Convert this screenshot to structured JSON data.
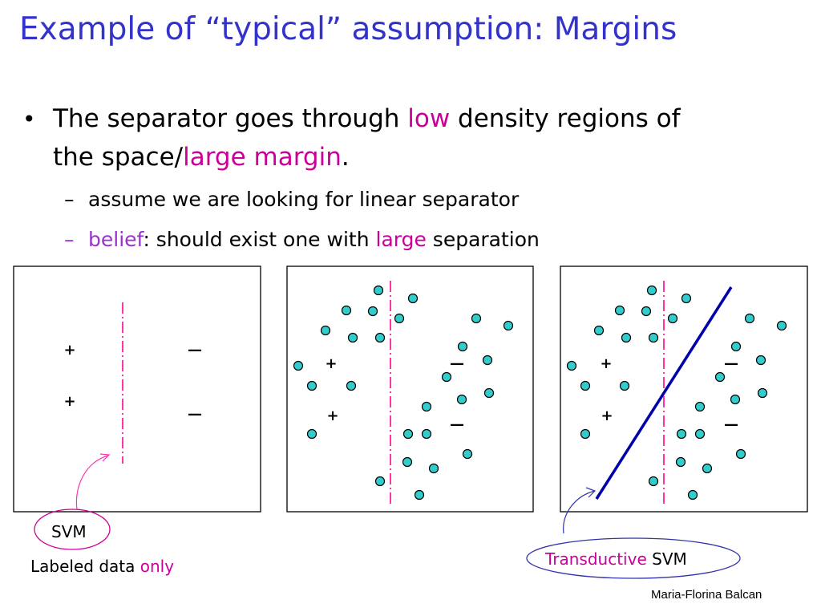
{
  "title": "Example of “typical” assumption: Margins",
  "bullet": {
    "marker": "•",
    "line1_a": "The separator goes through ",
    "line1_hl": "low",
    "line1_b": " density regions of",
    "line2_a": "the space/",
    "line2_hl": "large margin",
    "line2_b": "."
  },
  "subbullets": {
    "dash": "–",
    "s1": "assume we are looking for linear separator",
    "s2_hl": "belief",
    "s2_a": ": should exist one with ",
    "s2_hl2": "large",
    "s2_b": " separation"
  },
  "symbols": {
    "plus": "+",
    "minus": "—"
  },
  "captions": {
    "svm": "SVM",
    "labeled_a": "Labeled data ",
    "labeled_hl": "only",
    "tsvm_hl": "Transductive",
    "tsvm_b": " SVM"
  },
  "credit": "Maria-Florina Balcan",
  "colors": {
    "title": "#3333cc",
    "highlight": "#cc0099",
    "belief": "#9933cc",
    "point_fill": "#33cccc",
    "separator": "#ff33aa",
    "tsvm_line": "#0000aa"
  }
}
